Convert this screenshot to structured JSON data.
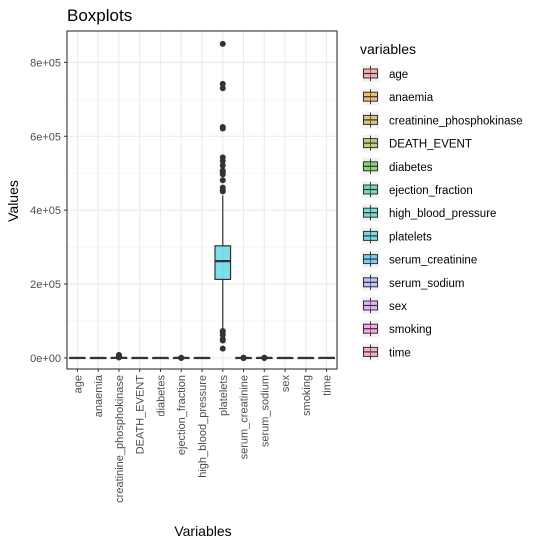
{
  "chart_data": {
    "type": "boxplot",
    "title": "Boxplots",
    "xlabel": "Variables",
    "ylabel": "Values",
    "ylim": [
      -30000,
      885000
    ],
    "yticks": [
      0,
      200000,
      400000,
      600000,
      800000
    ],
    "ytick_labels": [
      "0e+00",
      "2e+05",
      "4e+05",
      "6e+05",
      "8e+05"
    ],
    "grid": true,
    "legend_title": "variables",
    "legend_position": "right",
    "categories": [
      "age",
      "anaemia",
      "creatinine_phosphokinase",
      "DEATH_EVENT",
      "diabetes",
      "ejection_fraction",
      "high_blood_pressure",
      "platelets",
      "serum_creatinine",
      "serum_sodium",
      "sex",
      "smoking",
      "time"
    ],
    "colors": [
      "#F8766D",
      "#E18A00",
      "#BE9C00",
      "#8CAB00",
      "#24B700",
      "#00BE70",
      "#00C1AB",
      "#00BBDA",
      "#00ACFC",
      "#8B93FF",
      "#D575FE",
      "#F962DD",
      "#FF65AC"
    ],
    "series": [
      {
        "name": "age",
        "min": 40,
        "q1": 51,
        "median": 60,
        "q3": 70,
        "max": 95,
        "outliers": []
      },
      {
        "name": "anaemia",
        "min": 0,
        "q1": 0,
        "median": 0,
        "q3": 1,
        "max": 1,
        "outliers": []
      },
      {
        "name": "creatinine_phosphokinase",
        "min": 23,
        "q1": 116,
        "median": 250,
        "q3": 582,
        "max": 1280,
        "outliers": [
          1380,
          1688,
          1820,
          2060,
          2334,
          2656,
          3964,
          4540,
          5209,
          7702,
          7861
        ]
      },
      {
        "name": "DEATH_EVENT",
        "min": 0,
        "q1": 0,
        "median": 0,
        "q3": 1,
        "max": 1,
        "outliers": []
      },
      {
        "name": "diabetes",
        "min": 0,
        "q1": 0,
        "median": 0,
        "q3": 1,
        "max": 1,
        "outliers": []
      },
      {
        "name": "ejection_fraction",
        "min": 14,
        "q1": 30,
        "median": 38,
        "q3": 45,
        "max": 62,
        "outliers": [
          70,
          80
        ]
      },
      {
        "name": "high_blood_pressure",
        "min": 0,
        "q1": 0,
        "median": 0,
        "q3": 1,
        "max": 1,
        "outliers": []
      },
      {
        "name": "platelets",
        "min": 76000,
        "q1": 212500,
        "median": 262000,
        "q3": 303500,
        "max": 440000,
        "outliers": [
          25100,
          47000,
          51000,
          62000,
          70000,
          73000,
          451000,
          454000,
          461000,
          481000,
          497000,
          504000,
          507000,
          521000,
          533000,
          543000,
          621000,
          625000,
          730000,
          742000,
          850000
        ]
      },
      {
        "name": "serum_creatinine",
        "min": 0.5,
        "q1": 0.9,
        "median": 1.1,
        "q3": 1.4,
        "max": 2.1,
        "outliers": [
          2.5,
          3.0,
          4.0,
          5.8,
          6.1,
          9.0,
          9.4
        ]
      },
      {
        "name": "serum_sodium",
        "min": 125,
        "q1": 134,
        "median": 137,
        "q3": 140,
        "max": 148,
        "outliers": [
          113,
          116,
          121,
          124
        ]
      },
      {
        "name": "sex",
        "min": 0,
        "q1": 0,
        "median": 1,
        "q3": 1,
        "max": 1,
        "outliers": []
      },
      {
        "name": "smoking",
        "min": 0,
        "q1": 0,
        "median": 0,
        "q3": 1,
        "max": 1,
        "outliers": []
      },
      {
        "name": "time",
        "min": 4,
        "q1": 73,
        "median": 115,
        "q3": 203,
        "max": 285,
        "outliers": []
      }
    ]
  }
}
